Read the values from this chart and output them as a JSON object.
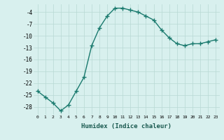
{
  "x": [
    0,
    1,
    2,
    3,
    4,
    5,
    6,
    7,
    8,
    9,
    10,
    11,
    12,
    13,
    14,
    15,
    16,
    17,
    18,
    19,
    20,
    21,
    22,
    23
  ],
  "y": [
    -24,
    -25.5,
    -27,
    -29,
    -27.5,
    -24,
    -20.5,
    -12.5,
    -8,
    -5,
    -3,
    -3,
    -3.5,
    -4,
    -5,
    -6,
    -8.5,
    -10.5,
    -12,
    -12.5,
    -12,
    -12,
    -11.5,
    -11
  ],
  "line_color": "#1a7a6e",
  "marker_color": "#1a7a6e",
  "bg_color": "#d8f0ee",
  "grid_color": "#b8d8d4",
  "xlabel": "Humidex (Indice chaleur)",
  "yticks": [
    -28,
    -25,
    -22,
    -19,
    -16,
    -13,
    -10,
    -7,
    -4
  ],
  "ylim": [
    -30,
    -2
  ],
  "xlim": [
    -0.5,
    23.5
  ],
  "xtick_fontsize": 4.5,
  "ytick_fontsize": 5.5,
  "xlabel_fontsize": 6.5
}
